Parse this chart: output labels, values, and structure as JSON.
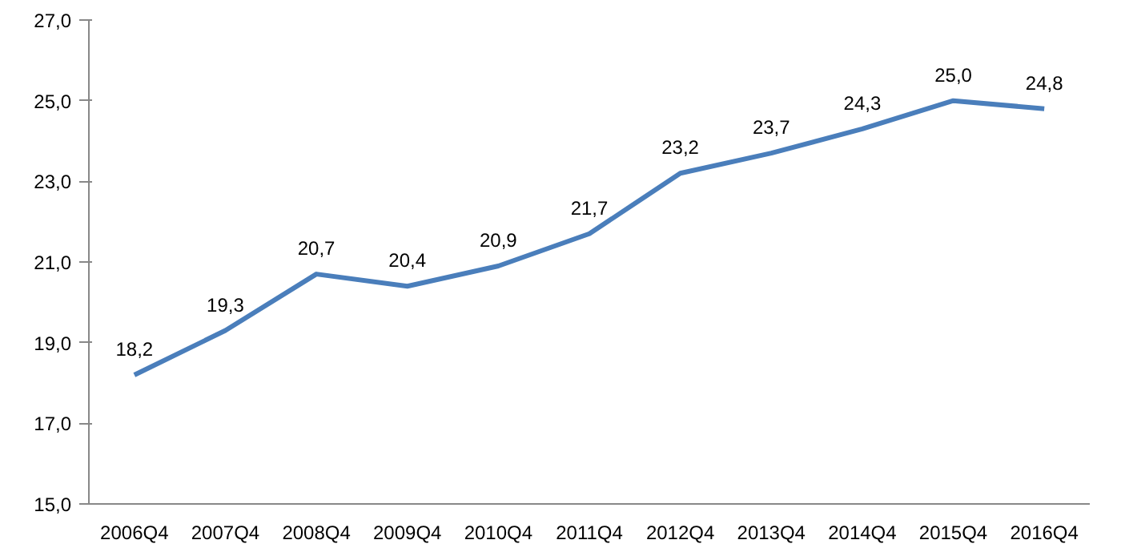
{
  "chart_data": {
    "type": "line",
    "categories": [
      "2006Q4",
      "2007Q4",
      "2008Q4",
      "2009Q4",
      "2010Q4",
      "2011Q4",
      "2012Q4",
      "2013Q4",
      "2014Q4",
      "2015Q4",
      "2016Q4"
    ],
    "series": [
      {
        "color": "#4a7ebb",
        "values": [
          18.2,
          19.3,
          20.7,
          20.4,
          20.9,
          21.7,
          23.2,
          23.7,
          24.3,
          25.0,
          24.8
        ],
        "value_labels": [
          "18,2",
          "19,3",
          "20,7",
          "20,4",
          "20,9",
          "21,7",
          "23,2",
          "23,7",
          "24,3",
          "25,0",
          "24,8"
        ]
      }
    ],
    "ylim": [
      15,
      27
    ],
    "yticks": [
      {
        "value": 15,
        "label": "15,0"
      },
      {
        "value": 17,
        "label": "17,0"
      },
      {
        "value": 19,
        "label": "19,0"
      },
      {
        "value": 21,
        "label": "21,0"
      },
      {
        "value": 23,
        "label": "23,0"
      },
      {
        "value": 25,
        "label": "25,0"
      },
      {
        "value": 27,
        "label": "27,0"
      }
    ],
    "grid": false,
    "marker": "none",
    "line_style": "solid"
  }
}
